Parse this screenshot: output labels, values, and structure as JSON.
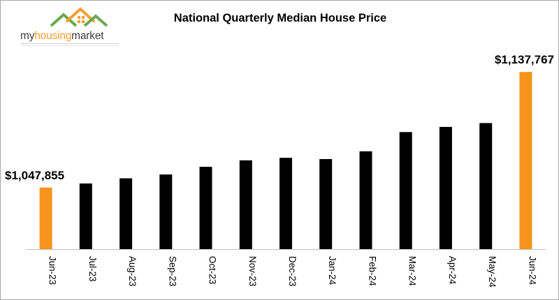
{
  "brand": {
    "name_part1": "my",
    "name_part2": "housing",
    "name_part3": "market"
  },
  "colors": {
    "bar": "#000000",
    "highlight": "#f7941d",
    "axis": "#bfbfbf",
    "logo_green": "#6aa84f",
    "logo_orange": "#f0a030"
  },
  "icons": {
    "logo": "house-roofs-icon"
  },
  "chart_data": {
    "type": "bar",
    "title": "National Quarterly Median House Price",
    "xlabel": "",
    "ylabel": "",
    "categories": [
      "Jun-23",
      "Jul-23",
      "Aug-23",
      "Sep-23",
      "Oct-23",
      "Nov-23",
      "Dec-23",
      "Jan-24",
      "Feb-24",
      "Mar-24",
      "Apr-24",
      "May-24",
      "Jun-24"
    ],
    "values": [
      1047855,
      1051000,
      1055000,
      1058000,
      1064000,
      1069000,
      1071000,
      1070000,
      1076000,
      1091000,
      1095000,
      1098000,
      1137767
    ],
    "highlight_indices": [
      0,
      12
    ],
    "data_labels": {
      "0": "$1,047,855",
      "12": "$1,137,767"
    },
    "ylim": [
      1000000,
      1140000
    ],
    "grid": false,
    "legend": "none"
  }
}
